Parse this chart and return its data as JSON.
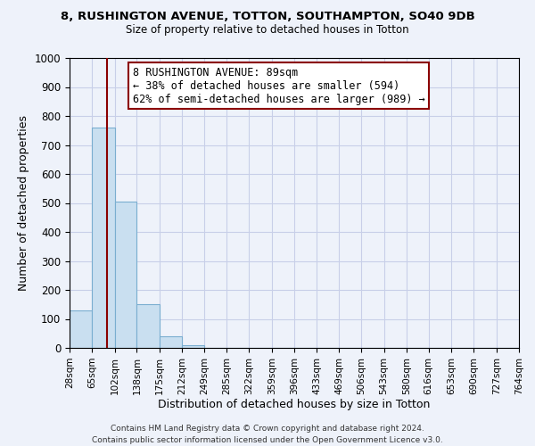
{
  "title_line1": "8, RUSHINGTON AVENUE, TOTTON, SOUTHAMPTON, SO40 9DB",
  "title_line2": "Size of property relative to detached houses in Totton",
  "xlabel": "Distribution of detached houses by size in Totton",
  "ylabel": "Number of detached properties",
  "footer_line1": "Contains HM Land Registry data © Crown copyright and database right 2024.",
  "footer_line2": "Contains public sector information licensed under the Open Government Licence v3.0.",
  "annotation_line1": "8 RUSHINGTON AVENUE: 89sqm",
  "annotation_line2": "← 38% of detached houses are smaller (594)",
  "annotation_line3": "62% of semi-detached houses are larger (989) →",
  "bar_edges": [
    28,
    65,
    102,
    138,
    175,
    212,
    249,
    285,
    322,
    359,
    396,
    433,
    469,
    506,
    543,
    580,
    616,
    653,
    690,
    727,
    764
  ],
  "bar_heights": [
    128,
    760,
    505,
    150,
    40,
    10,
    0,
    0,
    0,
    0,
    0,
    0,
    0,
    0,
    0,
    0,
    0,
    0,
    0,
    0
  ],
  "bar_color": "#c9dff0",
  "bar_edge_color": "#7aaed0",
  "vline_x": 89,
  "vline_color": "#8b0000",
  "ylim": [
    0,
    1000
  ],
  "xlim": [
    28,
    764
  ],
  "annotation_box_color": "#ffffff",
  "annotation_box_edge_color": "#8b0000",
  "bg_color": "#eef2fa",
  "grid_color": "#c8cfe8",
  "yticks": [
    0,
    100,
    200,
    300,
    400,
    500,
    600,
    700,
    800,
    900,
    1000
  ]
}
